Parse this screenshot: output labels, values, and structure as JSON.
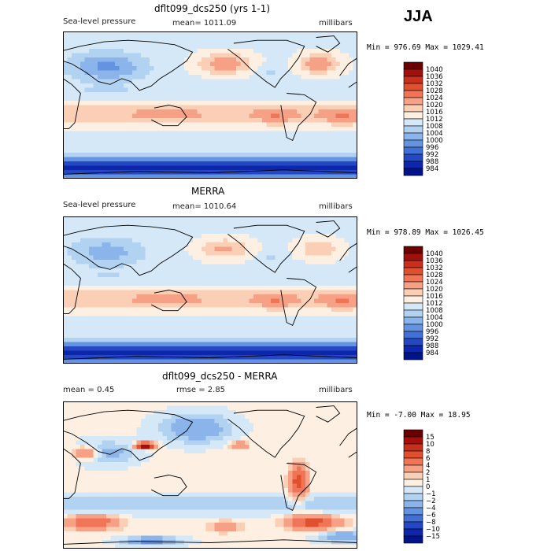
{
  "season": "JJA",
  "chart_data": [
    {
      "type": "heatmap",
      "title": "dflt099_dcs250 (yrs 1-1)",
      "variable": "Sea-level pressure",
      "stat_text": "mean= 1011.09",
      "units": "millibars",
      "minmax_text": "Min = 976.69 Max = 1029.41",
      "min": 976.69,
      "max": 1029.41,
      "mean": 1011.09,
      "colorbar": {
        "levels": [
          "1040",
          "1036",
          "1032",
          "1028",
          "1024",
          "1020",
          "1016",
          "1012",
          "1008",
          "1004",
          "1000",
          "996",
          "992",
          "988",
          "984"
        ],
        "colors": [
          "#6b0000",
          "#a30f0a",
          "#c8301e",
          "#e04f2e",
          "#ef7556",
          "#f6a185",
          "#fbcfb5",
          "#fdf0e3",
          "#d5e8f8",
          "#b2d2f2",
          "#8ab4ea",
          "#6493e1",
          "#4270d6",
          "#2447c4",
          "#0e26ab",
          "#001389"
        ]
      }
    },
    {
      "type": "heatmap",
      "title": "MERRA",
      "variable": "Sea-level pressure",
      "stat_text": "mean= 1010.64",
      "units": "millibars",
      "minmax_text": "Min = 978.89 Max = 1026.45",
      "min": 978.89,
      "max": 1026.45,
      "mean": 1010.64,
      "colorbar": {
        "levels": [
          "1040",
          "1036",
          "1032",
          "1028",
          "1024",
          "1020",
          "1016",
          "1012",
          "1008",
          "1004",
          "1000",
          "996",
          "992",
          "988",
          "984"
        ],
        "colors": [
          "#6b0000",
          "#a30f0a",
          "#c8301e",
          "#e04f2e",
          "#ef7556",
          "#f6a185",
          "#fbcfb5",
          "#fdf0e3",
          "#d5e8f8",
          "#b2d2f2",
          "#8ab4ea",
          "#6493e1",
          "#4270d6",
          "#2447c4",
          "#0e26ab",
          "#001389"
        ]
      }
    },
    {
      "type": "heatmap",
      "title": "dflt099_dcs250 - MERRA",
      "variable": "mean =   0.45",
      "stat_text": "rmse =   2.85",
      "units": "millibars",
      "minmax_text": "Min =  -7.00 Max =  18.95",
      "min": -7.0,
      "max": 18.95,
      "mean": 0.45,
      "rmse": 2.85,
      "colorbar": {
        "levels": [
          "15",
          "10",
          "8",
          "6",
          "4",
          "2",
          "1",
          "0",
          "−1",
          "−2",
          "−4",
          "−6",
          "−8",
          "−10",
          "−15"
        ],
        "colors": [
          "#6b0000",
          "#a30f0a",
          "#c8301e",
          "#e04f2e",
          "#ef7556",
          "#f6a185",
          "#fbcfb5",
          "#fdf0e3",
          "#d5e8f8",
          "#b2d2f2",
          "#8ab4ea",
          "#6493e1",
          "#4270d6",
          "#2447c4",
          "#0e26ab",
          "#001389"
        ]
      }
    }
  ]
}
